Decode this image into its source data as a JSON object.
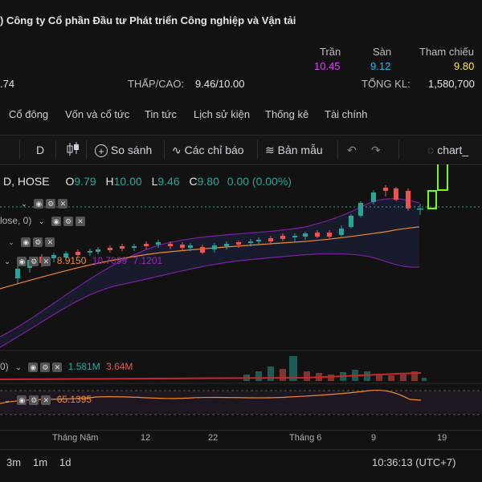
{
  "header": {
    "company": ") Công ty Cổ phần Đầu tư Phát triển Công nghiệp và Vận tải",
    "tran_label": "Trần",
    "tran_value": "10.45",
    "san_label": "Sàn",
    "san_value": "9.12",
    "thamchieu_label": "Tham chiếu",
    "thamchieu_value": "9.80",
    "left_value": ".74",
    "thapcao_label": "THẤP/CAO:",
    "thapcao_value": "9.46/10.00",
    "tongkl_label": "TỔNG KL:",
    "tongkl_value": "1,580,700"
  },
  "tabs": [
    "Cổ đông",
    "Vốn và cổ tức",
    "Tin tức",
    "Lịch sử kiện",
    "Thống kê",
    "Tài chính"
  ],
  "toolbar": {
    "interval": "D",
    "compare": "So sánh",
    "indicators": "Các chỉ báo",
    "templates": "Bản mẫu",
    "chart_name": "chart_"
  },
  "legend": {
    "symbol": "D, HOSE",
    "o_label": "O",
    "o_value": "9.79",
    "h_label": "H",
    "h_value": "10.00",
    "l_label": "L",
    "l_value": "9.46",
    "c_label": "C",
    "c_value": "9.80",
    "change": "0.00 (0.00%)"
  },
  "indicators": {
    "ind1": "lose, 0)",
    "bb_basis": "8.9150",
    "bb_upper": "10.7099",
    "bb_lower": "7.1201",
    "vol_prefix": "0)",
    "vol_value": "1.581M",
    "vol_ma": "3.64M",
    "rsi_value": "65.1395"
  },
  "xaxis": {
    "labels": [
      "Tháng Năm",
      "12",
      "22",
      "Tháng 6",
      "9",
      "19"
    ]
  },
  "bottom": {
    "ranges": [
      "3m",
      "1m",
      "1d"
    ],
    "clock": "10:36:13 (UTC+7)"
  },
  "colors": {
    "up": "#26a69a",
    "down": "#ef5350",
    "ceiling": "#e040fb",
    "floor": "#29b6f6",
    "reference": "#ffeb3b",
    "highlight": "#76ff03"
  }
}
